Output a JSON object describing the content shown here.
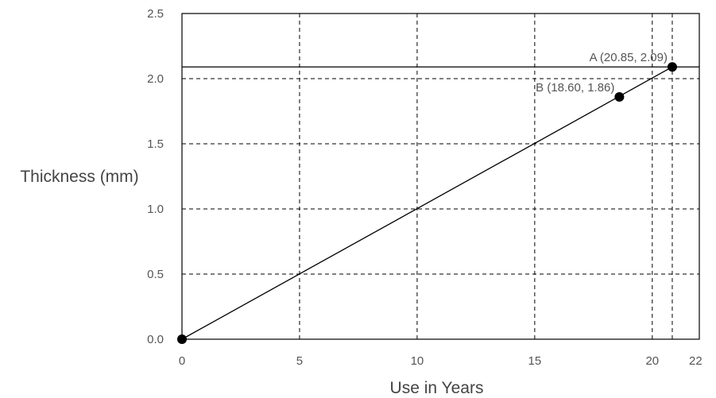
{
  "chart_data": {
    "type": "scatter",
    "title": "",
    "xlabel": "Use in Years",
    "ylabel": "Thickness (mm)",
    "xlim": [
      0,
      22
    ],
    "ylim": [
      0,
      2.5
    ],
    "xticks": [
      0,
      5,
      10,
      15,
      20,
      22
    ],
    "xtick_labels": [
      "0",
      "5",
      "10",
      "15",
      "20",
      "22"
    ],
    "yticks": [
      0,
      0.5,
      1.0,
      1.5,
      2.0,
      2.5
    ],
    "ytick_labels": [
      "0.0",
      "0.5",
      "1.0",
      "1.5",
      "2.0",
      "2.5"
    ],
    "grid": "dashed",
    "extra_gridlines": {
      "x": [
        20.85
      ],
      "y": [
        2.0
      ]
    },
    "reference_line": {
      "y": 2.09,
      "style": "solid"
    },
    "trend_line": {
      "from": [
        0,
        0
      ],
      "to": [
        20.85,
        2.09
      ]
    },
    "points": [
      {
        "x": 0,
        "y": 0,
        "label": ""
      },
      {
        "x": 18.6,
        "y": 1.86,
        "label": "B (18.60, 1.86)"
      },
      {
        "x": 20.85,
        "y": 2.09,
        "label": "A (20.85, 2.09)"
      }
    ]
  }
}
